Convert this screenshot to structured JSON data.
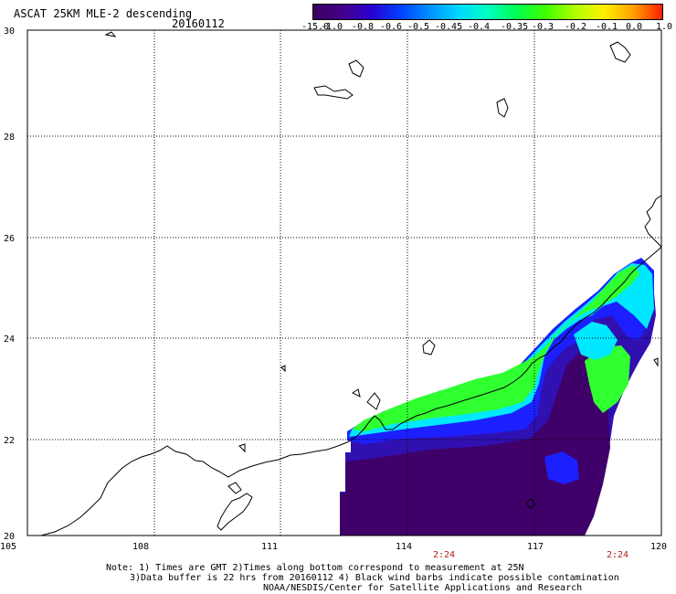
{
  "header": {
    "title": "ASCAT 25KM MLE-2 descending",
    "date": "20160112"
  },
  "colorbar": {
    "labels": [
      "-15.0",
      "-1.0",
      "-0.8",
      "-0.6",
      "-0.5",
      "-0.45",
      "-0.4",
      "-0.35",
      "-0.3",
      "-0.2",
      "-0.1",
      "0.0",
      "1.0"
    ],
    "colors": [
      "#3a0060",
      "#44008a",
      "#2a00d0",
      "#0040ff",
      "#0090ff",
      "#00d8ff",
      "#00ffc0",
      "#00ff50",
      "#40ff00",
      "#b0ff00",
      "#fff000",
      "#ffa000",
      "#ff2000"
    ]
  },
  "map": {
    "lon_ticks": [
      "105",
      "108",
      "111",
      "114",
      "117",
      "120"
    ],
    "lat_ticks": [
      "30",
      "28",
      "26",
      "24",
      "22",
      "20"
    ],
    "time_labels": [
      "2:24",
      "2:24"
    ],
    "colors": {
      "deep": "#40006a",
      "mid": "#3010b0",
      "blue": "#1c20ff",
      "cyan": "#00e8ff",
      "green": "#30ff30",
      "coast": "#000000",
      "grid": "#000000",
      "time": "#b22020"
    }
  },
  "notes": {
    "line1": "Note: 1) Times are GMT 2)Times along bottom correspond to measurement at 25N",
    "line2": "3)Data buffer is 22 hrs from 20160112 4) Black wind barbs indicate possible contamination",
    "line3": "NOAA/NESDIS/Center for Satellite Applications and Research"
  }
}
